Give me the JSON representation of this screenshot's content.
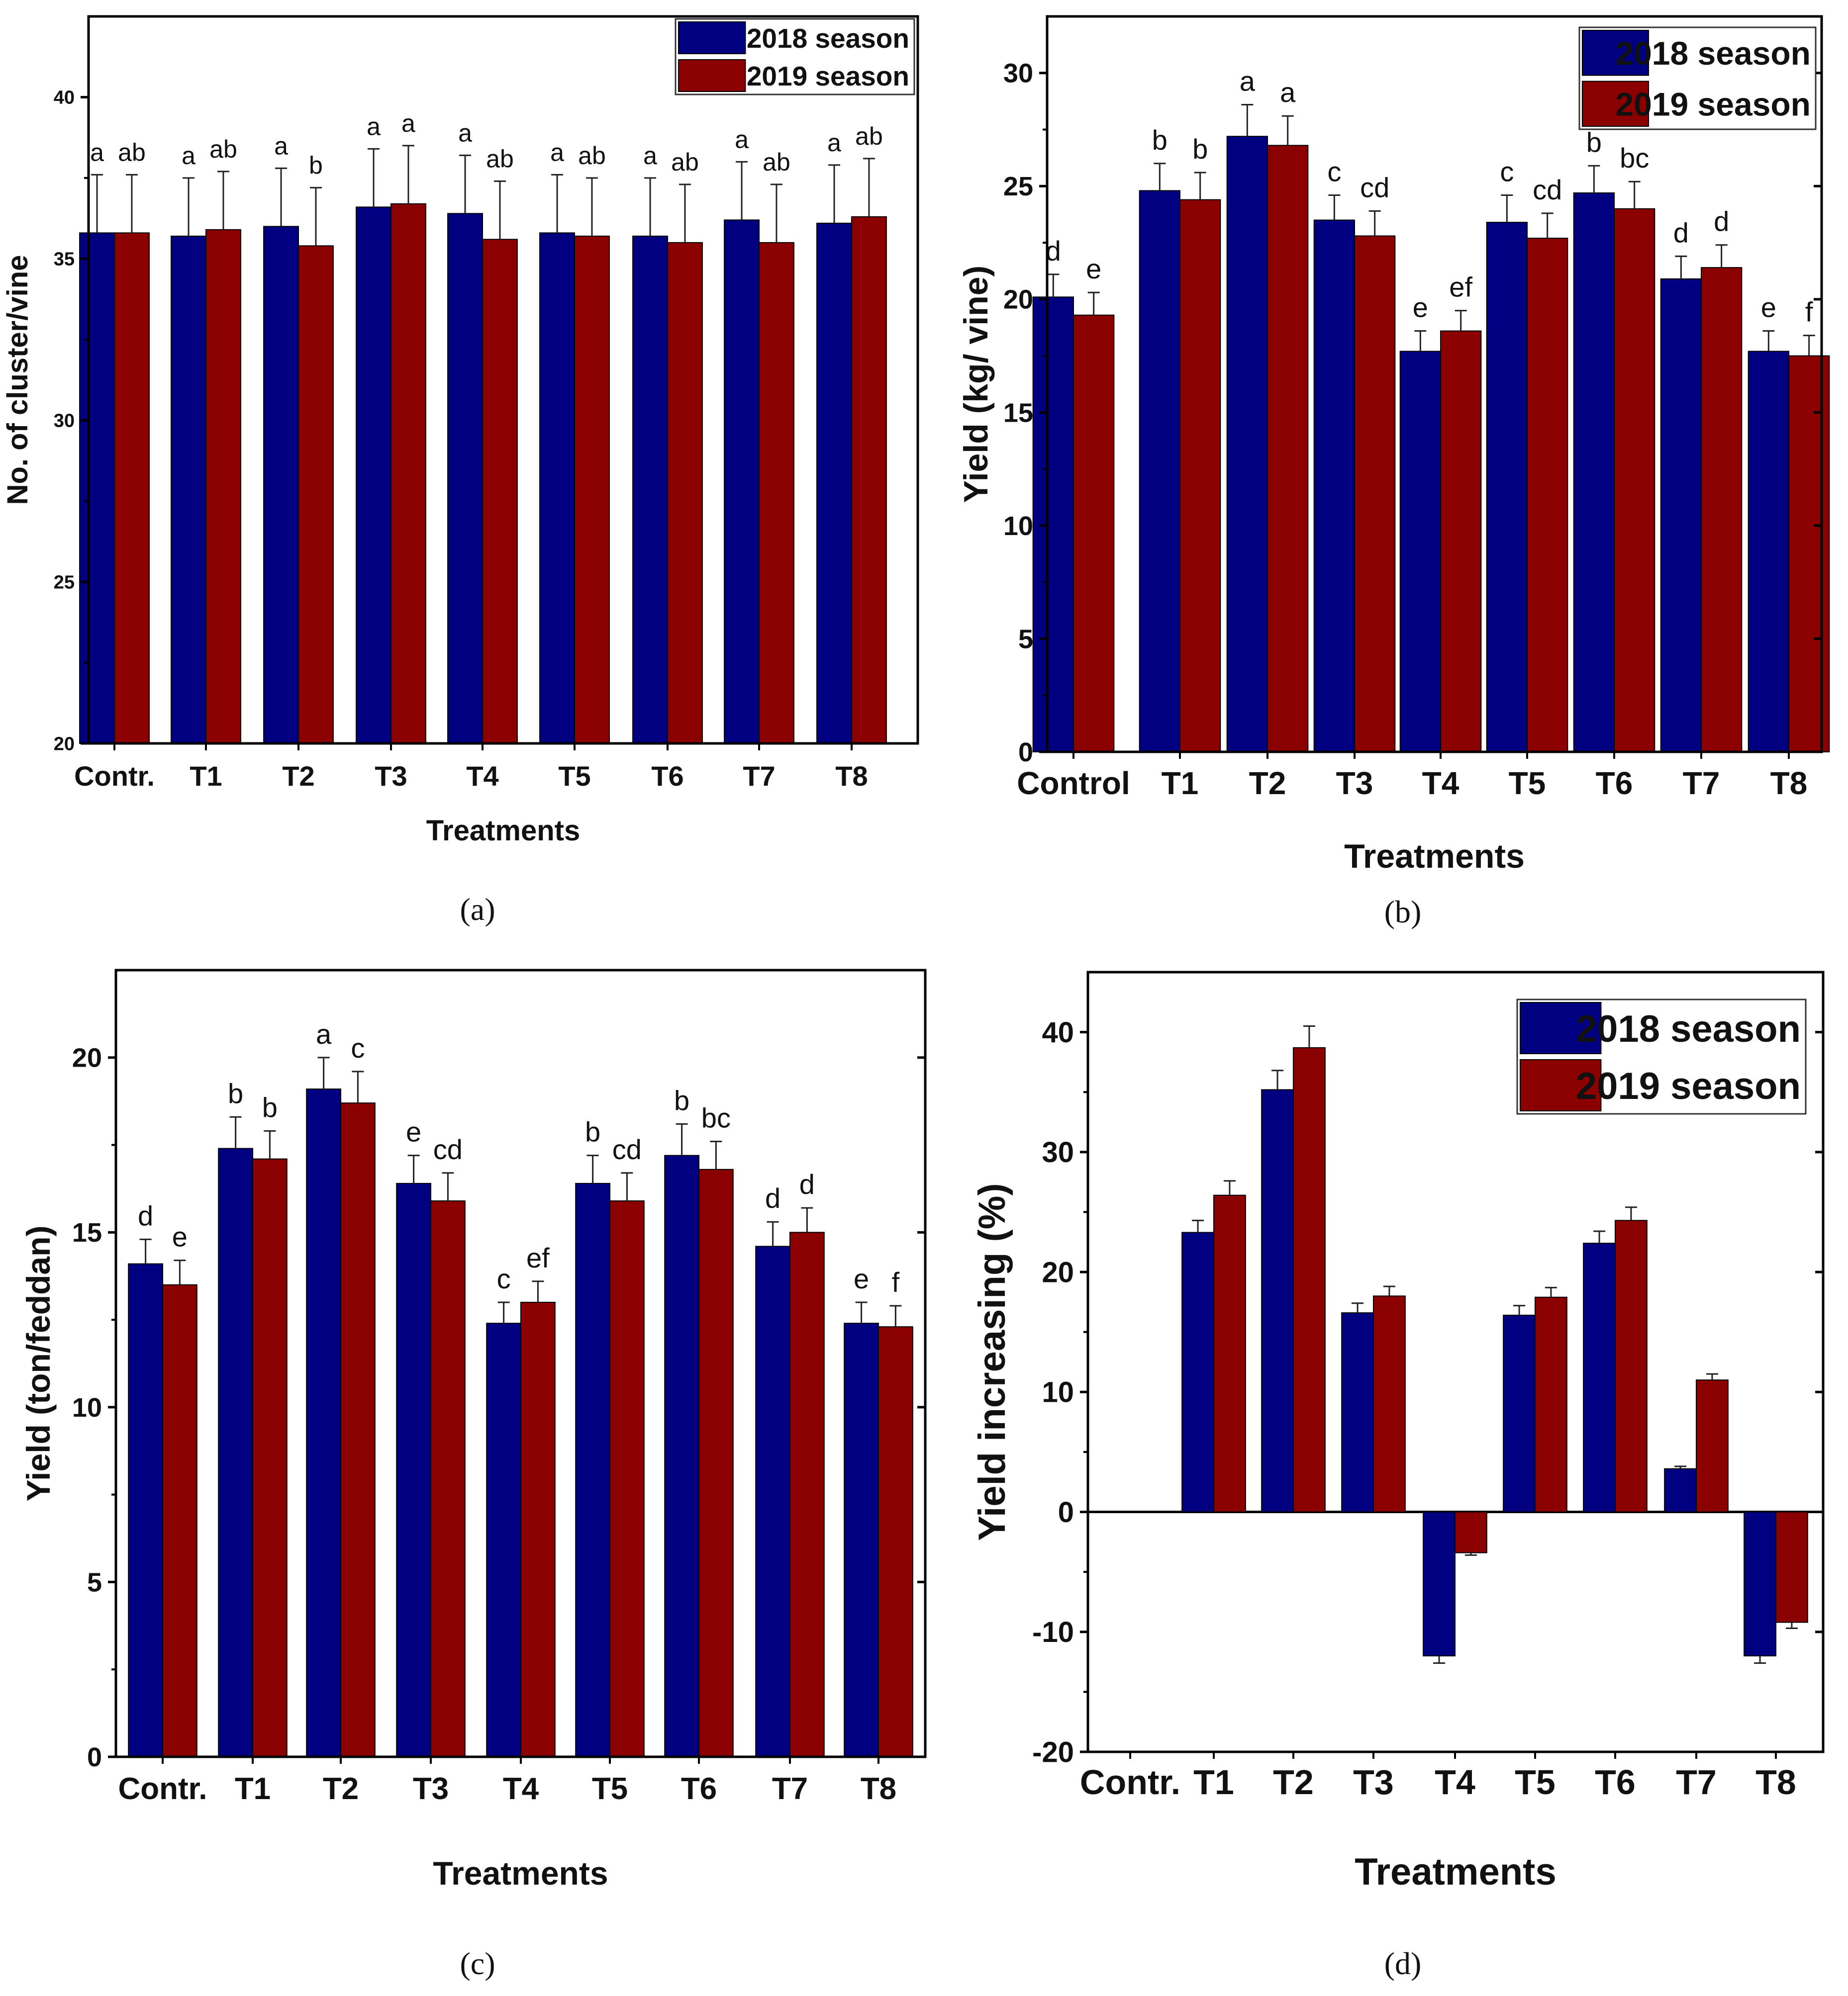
{
  "colors": {
    "series_2018": "#000080",
    "series_2019": "#8b0000",
    "axis": "#000000"
  },
  "chart_data": [
    {
      "id": "a",
      "caption": "(a)",
      "type": "bar",
      "title": "",
      "xlabel": "Treatments",
      "ylabel": "No. of cluster/vine",
      "ylim": [
        20,
        42.5
      ],
      "yticks": [
        20,
        25,
        30,
        35,
        40
      ],
      "ytick_labels": [
        "20",
        "25",
        "30",
        "35",
        "40"
      ],
      "categories": [
        "Contr.",
        "T1",
        "T2",
        "T3",
        "T4",
        "T5",
        "T6",
        "T7",
        "T8"
      ],
      "legend": {
        "position": "top-right",
        "entries": [
          "2018 season",
          "2019 season"
        ]
      },
      "series": [
        {
          "name": "2018 season",
          "values": [
            35.8,
            35.7,
            36.0,
            36.6,
            36.4,
            35.8,
            35.7,
            36.2,
            36.1
          ],
          "errors": [
            1.8,
            1.8,
            1.8,
            1.8,
            1.8,
            1.8,
            1.8,
            1.8,
            1.8
          ],
          "letters": [
            "a",
            "a",
            "a",
            "a",
            "a",
            "a",
            "a",
            "a",
            "a"
          ]
        },
        {
          "name": "2019 season",
          "values": [
            35.8,
            35.9,
            35.4,
            36.7,
            35.6,
            35.7,
            35.5,
            35.5,
            36.3
          ],
          "errors": [
            1.8,
            1.8,
            1.8,
            1.8,
            1.8,
            1.8,
            1.8,
            1.8,
            1.8
          ],
          "letters": [
            "ab",
            "ab",
            "b",
            "a",
            "ab",
            "ab",
            "ab",
            "ab",
            "ab"
          ]
        }
      ]
    },
    {
      "id": "b",
      "caption": "(b)",
      "type": "bar",
      "title": "",
      "xlabel": "Treatments",
      "ylabel": "Yield (kg/ vine)",
      "ylim": [
        0,
        32.5
      ],
      "yticks": [
        0,
        5,
        10,
        15,
        20,
        25,
        30
      ],
      "ytick_labels": [
        "0",
        "5",
        "10",
        "15",
        "20",
        "25",
        "30"
      ],
      "categories": [
        "Control",
        "T1",
        "T2",
        "T3",
        "T4",
        "T5",
        "T6",
        "T7",
        "T8"
      ],
      "legend": {
        "position": "top-right",
        "entries": [
          "2018 season",
          "2019 season"
        ]
      },
      "series": [
        {
          "name": "2018 season",
          "values": [
            20.1,
            24.8,
            27.2,
            23.5,
            17.7,
            23.4,
            24.7,
            20.9,
            17.7
          ],
          "errors": [
            1.0,
            1.2,
            1.4,
            1.1,
            0.9,
            1.2,
            1.2,
            1.0,
            0.9
          ],
          "letters": [
            "d",
            "b",
            "a",
            "c",
            "e",
            "c",
            "b",
            "d",
            "e"
          ]
        },
        {
          "name": "2019 season",
          "values": [
            19.3,
            24.4,
            26.8,
            22.8,
            18.6,
            22.7,
            24.0,
            21.4,
            17.5
          ],
          "errors": [
            1.0,
            1.2,
            1.3,
            1.1,
            0.9,
            1.1,
            1.2,
            1.0,
            0.9
          ],
          "letters": [
            "e",
            "b",
            "a",
            "cd",
            "ef",
            "cd",
            "bc",
            "d",
            "f"
          ]
        }
      ]
    },
    {
      "id": "c",
      "caption": "(c)",
      "type": "bar",
      "title": "",
      "xlabel": "Treatments",
      "ylabel": "Yield (ton/feddan)",
      "ylim": [
        0,
        22.5
      ],
      "yticks": [
        0,
        5,
        10,
        15,
        20
      ],
      "ytick_labels": [
        "0",
        "5",
        "10",
        "15",
        "20"
      ],
      "categories": [
        "Contr.",
        "T1",
        "T2",
        "T3",
        "T4",
        "T5",
        "T6",
        "T7",
        "T8"
      ],
      "legend": null,
      "series": [
        {
          "name": "2018 season",
          "values": [
            14.1,
            17.4,
            19.1,
            16.4,
            12.4,
            16.4,
            17.2,
            14.6,
            12.4
          ],
          "errors": [
            0.7,
            0.9,
            0.9,
            0.8,
            0.6,
            0.8,
            0.9,
            0.7,
            0.6
          ],
          "letters": [
            "d",
            "b",
            "a",
            "e",
            "c",
            "b",
            "b",
            "d",
            "e"
          ]
        },
        {
          "name": "2019 season",
          "values": [
            13.5,
            17.1,
            18.7,
            15.9,
            13.0,
            15.9,
            16.8,
            15.0,
            12.3
          ],
          "errors": [
            0.7,
            0.8,
            0.9,
            0.8,
            0.6,
            0.8,
            0.8,
            0.7,
            0.6
          ],
          "letters": [
            "e",
            "b",
            "c",
            "cd",
            "ef",
            "cd",
            "bc",
            "d",
            "f"
          ]
        }
      ]
    },
    {
      "id": "d",
      "caption": "(d)",
      "type": "bar",
      "title": "",
      "xlabel": "Treatments",
      "ylabel": "Yield increasing (%)",
      "ylim": [
        -20,
        45
      ],
      "yticks": [
        -20,
        -10,
        0,
        10,
        20,
        30,
        40
      ],
      "ytick_labels": [
        "-20",
        "-10",
        "0",
        "10",
        "20",
        "30",
        "40"
      ],
      "categories": [
        "Contr.",
        "T1",
        "T2",
        "T3",
        "T4",
        "T5",
        "T6",
        "T7",
        "T8"
      ],
      "legend": {
        "position": "top-right",
        "entries": [
          "2018 season",
          "2019 season"
        ]
      },
      "series": [
        {
          "name": "2018 season",
          "values": [
            null,
            23.3,
            35.2,
            16.6,
            -12.0,
            16.4,
            22.4,
            3.6,
            -12.0
          ],
          "errors": [
            0,
            1.0,
            1.6,
            0.8,
            0.6,
            0.8,
            1.0,
            0.2,
            0.6
          ],
          "letters": []
        },
        {
          "name": "2019 season",
          "values": [
            null,
            26.4,
            38.7,
            18.0,
            -3.4,
            17.9,
            24.3,
            11.0,
            -9.2
          ],
          "errors": [
            0,
            1.2,
            1.8,
            0.8,
            0.2,
            0.8,
            1.1,
            0.5,
            0.5
          ],
          "letters": []
        }
      ]
    }
  ]
}
